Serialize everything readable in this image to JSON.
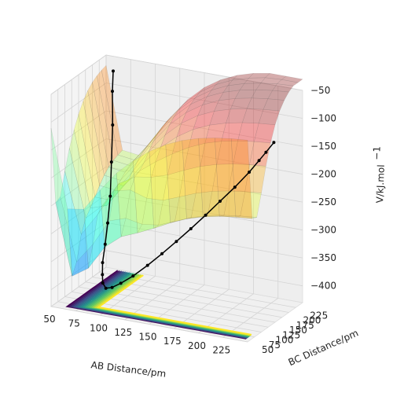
{
  "chart_data": {
    "type": "surface-3d",
    "title": "",
    "xlabel": "AB Distance/pm",
    "ylabel": "BC Distance/pm",
    "zlabel": "V/kJ.mol$^{-1}$",
    "zlabel_display": "V/kJ.mol",
    "zlabel_sup": "−1",
    "xlim": [
      50,
      250
    ],
    "ylim": [
      50,
      250
    ],
    "zlim": [
      -430,
      -50
    ],
    "x_ticks": [
      50,
      75,
      100,
      125,
      150,
      175,
      200,
      225
    ],
    "y_ticks": [
      50,
      75,
      100,
      125,
      150,
      175,
      200,
      225
    ],
    "z_ticks": [
      -400,
      -350,
      -300,
      -250,
      -200,
      -150,
      -100,
      -50
    ],
    "x_tick_labels": [
      "50",
      "75",
      "100",
      "125",
      "150",
      "175",
      "200",
      "225"
    ],
    "y_tick_labels": [
      "50",
      "75",
      "100",
      "125",
      "150",
      "175",
      "200",
      "225"
    ],
    "z_tick_labels": [
      "−400",
      "−350",
      "−300",
      "−250",
      "−200",
      "−150",
      "−100",
      "−50"
    ],
    "grid": true,
    "surface_colormap": "jet",
    "contour_colormap": "viridis",
    "trajectory": {
      "color": "#000000",
      "points": [
        [
          60,
          240,
          -72
        ],
        [
          62,
          230,
          -104
        ],
        [
          65,
          220,
          -160
        ],
        [
          68,
          205,
          -220
        ],
        [
          71,
          190,
          -275
        ],
        [
          74,
          170,
          -315
        ],
        [
          77,
          150,
          -345
        ],
        [
          80,
          130,
          -370
        ],
        [
          84,
          115,
          -385
        ],
        [
          88,
          102,
          -394
        ],
        [
          94,
          92,
          -398
        ],
        [
          102,
          86,
          -392
        ],
        [
          112,
          82,
          -380
        ],
        [
          125,
          80,
          -362
        ],
        [
          140,
          79,
          -338
        ],
        [
          155,
          78,
          -312
        ],
        [
          170,
          77,
          -285
        ],
        [
          185,
          76,
          -257
        ],
        [
          200,
          76,
          -228
        ],
        [
          215,
          75,
          -198
        ],
        [
          230,
          75,
          -168
        ],
        [
          245,
          74,
          -136
        ],
        [
          255,
          74,
          -112
        ],
        [
          262,
          74,
          -95
        ],
        [
          270,
          74,
          -75
        ]
      ]
    }
  }
}
